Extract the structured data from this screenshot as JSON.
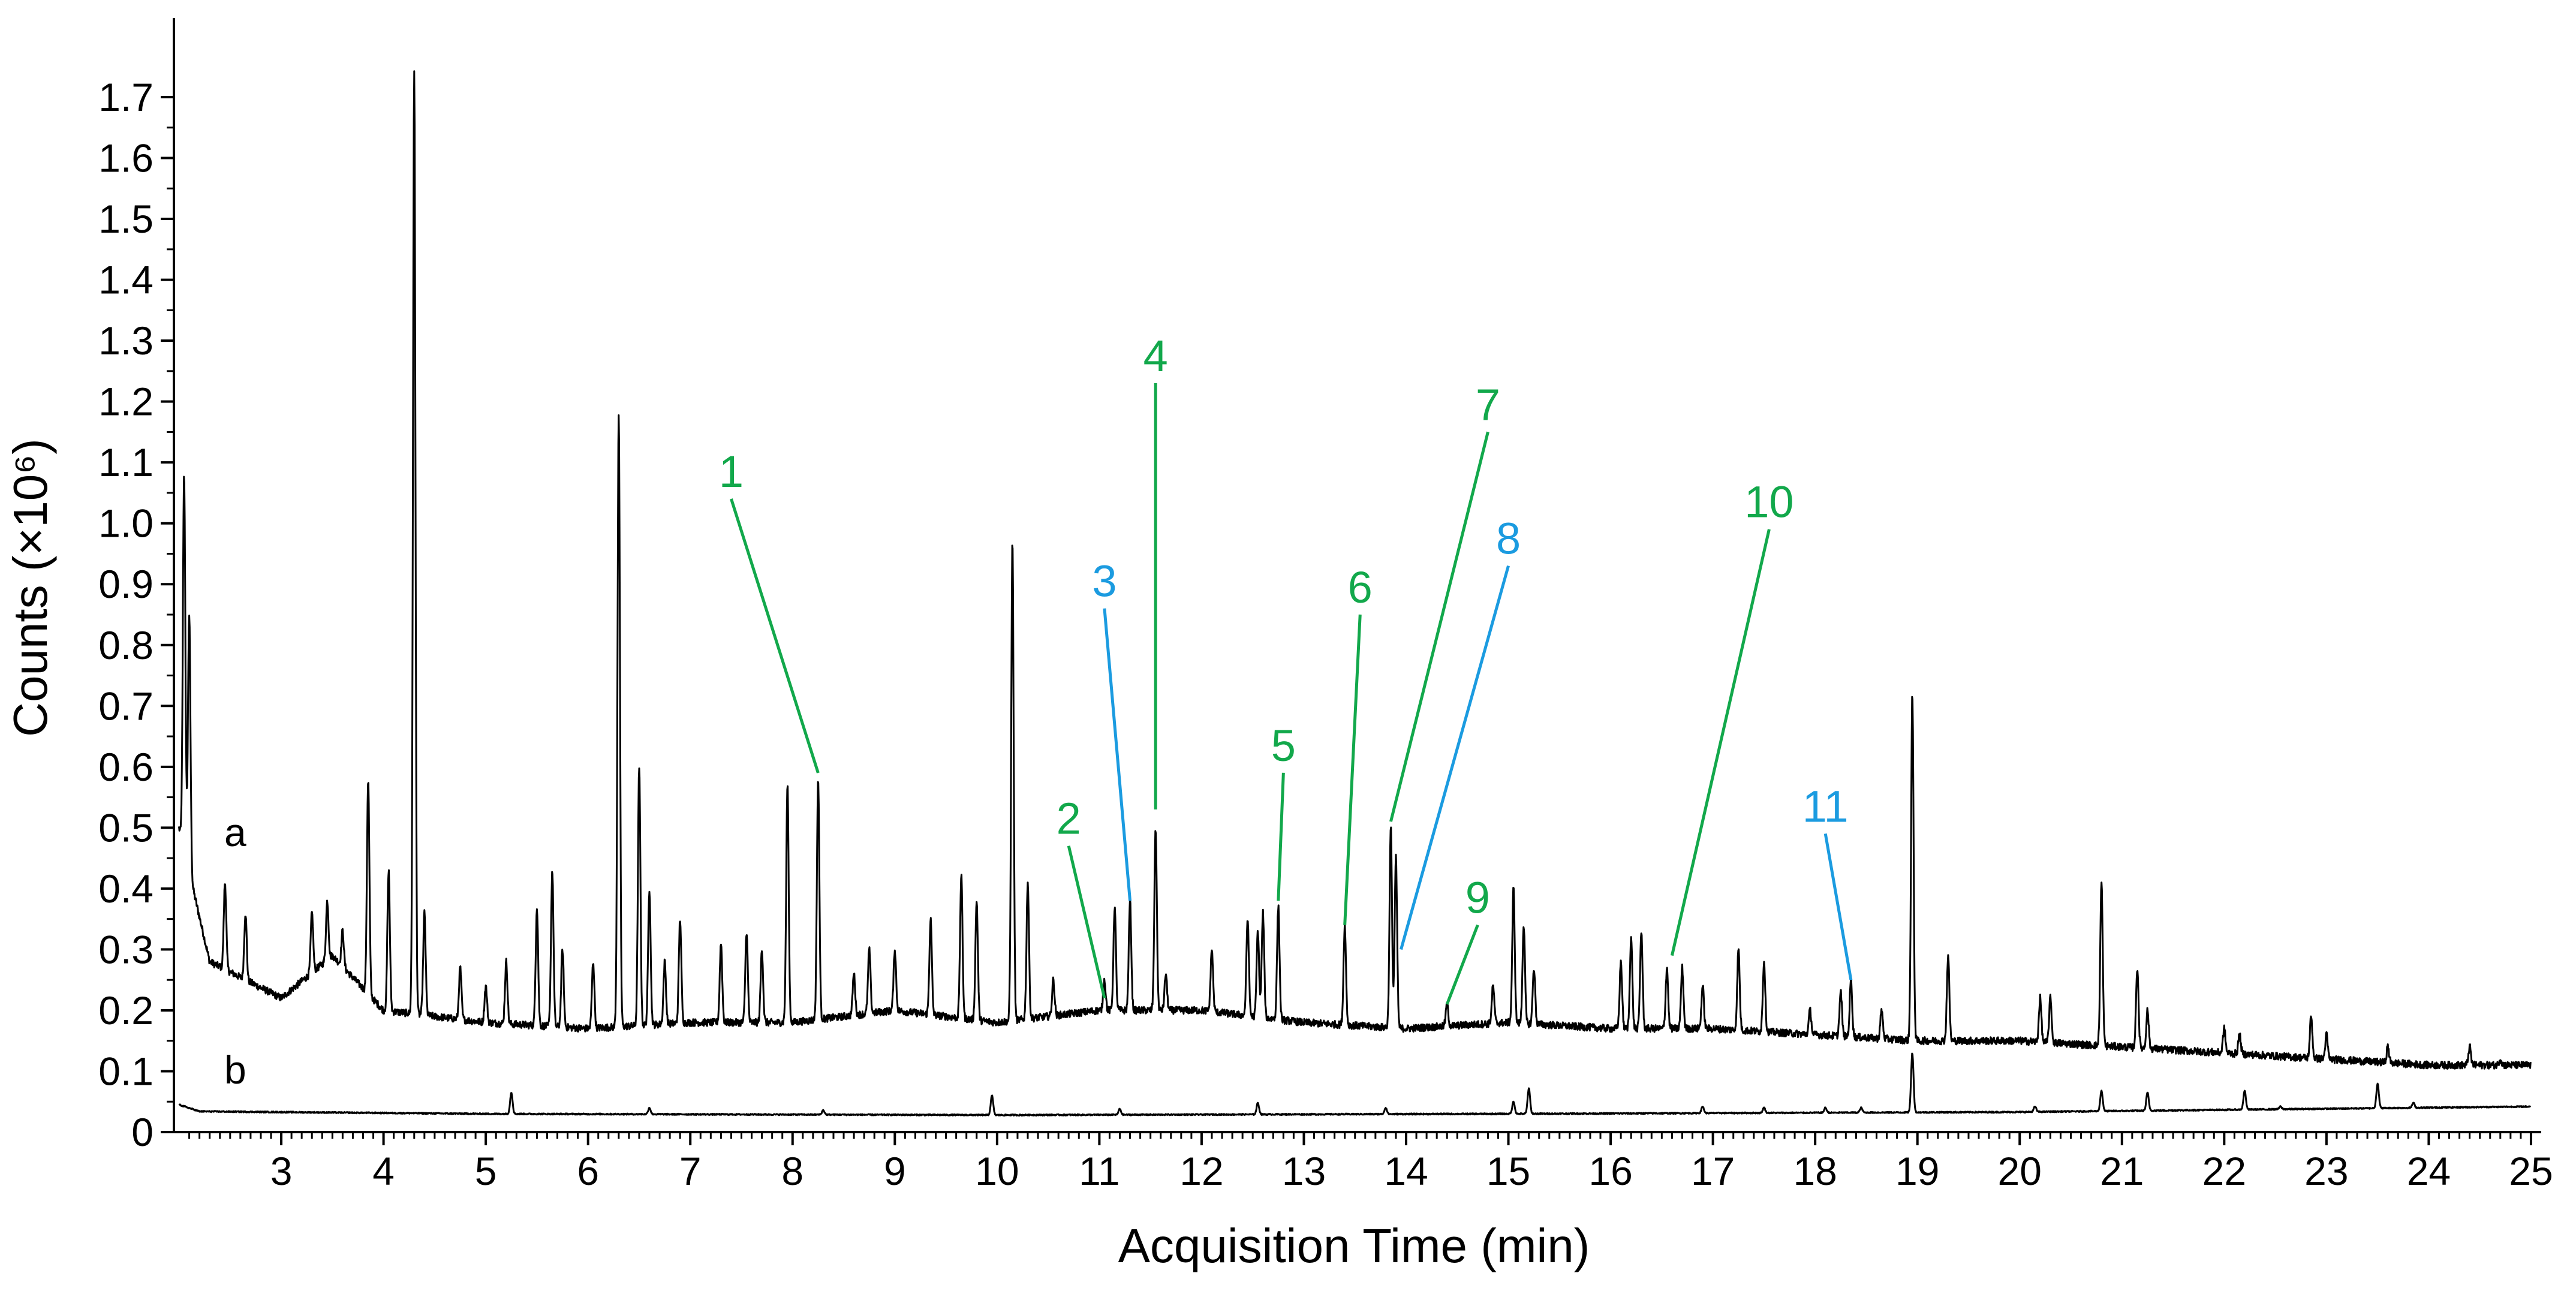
{
  "chart_data": {
    "type": "line",
    "xlabel": "Acquisition Time (min)",
    "ylabel": "Counts (×10⁶)",
    "xlim": [
      1.95,
      25.1
    ],
    "ylim": [
      0,
      1.83
    ],
    "x_ticks": [
      3,
      4,
      5,
      6,
      7,
      8,
      9,
      10,
      11,
      12,
      13,
      14,
      15,
      16,
      17,
      18,
      19,
      20,
      21,
      22,
      23,
      24,
      25
    ],
    "y_ticks": [
      0,
      0.1,
      0.2,
      0.3,
      0.4,
      0.5,
      0.6,
      0.7,
      0.8,
      0.9,
      1.0,
      1.1,
      1.2,
      1.3,
      1.4,
      1.5,
      1.6,
      1.7
    ],
    "y_tick_labels": [
      "0",
      "0.1",
      "0.2",
      "0.3",
      "0.4",
      "0.5",
      "0.6",
      "0.7",
      "0.8",
      "0.9",
      "1.0",
      "1.1",
      "1.2",
      "1.3",
      "1.4",
      "1.5",
      "1.6",
      "1.7"
    ],
    "grid": false,
    "series": [
      {
        "name": "a",
        "color": "#000000",
        "baseline": [
          [
            2.0,
            0.5
          ],
          [
            2.3,
            0.28
          ],
          [
            3.0,
            0.22
          ],
          [
            3.5,
            0.29
          ],
          [
            4.0,
            0.2
          ],
          [
            5.0,
            0.18
          ],
          [
            6.0,
            0.17
          ],
          [
            7.0,
            0.18
          ],
          [
            8.0,
            0.18
          ],
          [
            9.0,
            0.2
          ],
          [
            10.0,
            0.18
          ],
          [
            11.0,
            0.2
          ],
          [
            12.0,
            0.2
          ],
          [
            13.0,
            0.18
          ],
          [
            14.0,
            0.17
          ],
          [
            15.0,
            0.18
          ],
          [
            16.0,
            0.17
          ],
          [
            17.0,
            0.17
          ],
          [
            18.0,
            0.16
          ],
          [
            19.0,
            0.15
          ],
          [
            20.0,
            0.15
          ],
          [
            21.0,
            0.14
          ],
          [
            22.0,
            0.13
          ],
          [
            23.0,
            0.12
          ],
          [
            24.0,
            0.11
          ],
          [
            25.0,
            0.11
          ]
        ],
        "peaks": [
          [
            2.05,
            1.08
          ],
          [
            2.1,
            0.85
          ],
          [
            2.45,
            0.41
          ],
          [
            2.65,
            0.36
          ],
          [
            3.3,
            0.36
          ],
          [
            3.45,
            0.38
          ],
          [
            3.6,
            0.33
          ],
          [
            3.85,
            0.58
          ],
          [
            4.05,
            0.43
          ],
          [
            4.3,
            1.74
          ],
          [
            4.4,
            0.36
          ],
          [
            4.75,
            0.27
          ],
          [
            5.0,
            0.24
          ],
          [
            5.2,
            0.28
          ],
          [
            5.5,
            0.37
          ],
          [
            5.65,
            0.43
          ],
          [
            5.75,
            0.3
          ],
          [
            6.05,
            0.28
          ],
          [
            6.3,
            1.18
          ],
          [
            6.5,
            0.6
          ],
          [
            6.6,
            0.4
          ],
          [
            6.75,
            0.28
          ],
          [
            6.9,
            0.35
          ],
          [
            7.3,
            0.31
          ],
          [
            7.55,
            0.33
          ],
          [
            7.7,
            0.3
          ],
          [
            7.95,
            0.57
          ],
          [
            8.25,
            0.58
          ],
          [
            8.6,
            0.26
          ],
          [
            8.75,
            0.3
          ],
          [
            9.0,
            0.3
          ],
          [
            9.35,
            0.35
          ],
          [
            9.65,
            0.42
          ],
          [
            9.8,
            0.38
          ],
          [
            10.15,
            0.97
          ],
          [
            10.3,
            0.41
          ],
          [
            10.55,
            0.25
          ],
          [
            11.05,
            0.25
          ],
          [
            11.15,
            0.37
          ],
          [
            11.3,
            0.38
          ],
          [
            11.55,
            0.5
          ],
          [
            11.65,
            0.26
          ],
          [
            12.1,
            0.3
          ],
          [
            12.45,
            0.35
          ],
          [
            12.55,
            0.33
          ],
          [
            12.6,
            0.36
          ],
          [
            12.75,
            0.37
          ],
          [
            13.4,
            0.34
          ],
          [
            13.85,
            0.5
          ],
          [
            13.9,
            0.45
          ],
          [
            14.4,
            0.21
          ],
          [
            14.85,
            0.24
          ],
          [
            15.05,
            0.4
          ],
          [
            15.15,
            0.34
          ],
          [
            15.25,
            0.27
          ],
          [
            16.1,
            0.28
          ],
          [
            16.2,
            0.32
          ],
          [
            16.3,
            0.33
          ],
          [
            16.55,
            0.27
          ],
          [
            16.7,
            0.27
          ],
          [
            16.9,
            0.24
          ],
          [
            17.25,
            0.3
          ],
          [
            17.5,
            0.28
          ],
          [
            17.95,
            0.2
          ],
          [
            18.25,
            0.23
          ],
          [
            18.35,
            0.25
          ],
          [
            18.65,
            0.2
          ],
          [
            18.95,
            0.72
          ],
          [
            19.3,
            0.29
          ],
          [
            20.2,
            0.22
          ],
          [
            20.3,
            0.22
          ],
          [
            20.8,
            0.41
          ],
          [
            21.15,
            0.27
          ],
          [
            21.25,
            0.2
          ],
          [
            22.0,
            0.17
          ],
          [
            22.15,
            0.16
          ],
          [
            22.85,
            0.19
          ],
          [
            23.0,
            0.16
          ],
          [
            23.6,
            0.14
          ],
          [
            24.4,
            0.14
          ],
          [
            24.7,
            0.12
          ]
        ]
      },
      {
        "name": "b",
        "color": "#000000",
        "baseline": [
          [
            2.0,
            0.045
          ],
          [
            2.2,
            0.034
          ],
          [
            5.0,
            0.03
          ],
          [
            10.0,
            0.028
          ],
          [
            15.0,
            0.03
          ],
          [
            20.0,
            0.033
          ],
          [
            25.0,
            0.042
          ]
        ],
        "peaks": [
          [
            5.25,
            0.065
          ],
          [
            6.6,
            0.04
          ],
          [
            8.3,
            0.036
          ],
          [
            9.95,
            0.06
          ],
          [
            11.2,
            0.038
          ],
          [
            12.55,
            0.048
          ],
          [
            13.8,
            0.04
          ],
          [
            15.05,
            0.05
          ],
          [
            15.2,
            0.072
          ],
          [
            16.9,
            0.042
          ],
          [
            17.5,
            0.04
          ],
          [
            18.1,
            0.04
          ],
          [
            18.45,
            0.04
          ],
          [
            18.95,
            0.13
          ],
          [
            20.15,
            0.042
          ],
          [
            20.8,
            0.068
          ],
          [
            21.25,
            0.065
          ],
          [
            22.2,
            0.068
          ],
          [
            22.55,
            0.042
          ],
          [
            23.5,
            0.08
          ],
          [
            23.85,
            0.048
          ]
        ]
      }
    ],
    "trace_labels": [
      {
        "text": "a",
        "x": 2.55,
        "y": 0.47
      },
      {
        "text": "b",
        "x": 2.55,
        "y": 0.08
      }
    ],
    "annotations": [
      {
        "text": "1",
        "color": "#12a84b",
        "label_x": 7.4,
        "label_y": 1.05,
        "x": 8.25,
        "y": 0.59
      },
      {
        "text": "2",
        "color": "#12a84b",
        "label_x": 10.7,
        "label_y": 0.48,
        "x": 11.05,
        "y": 0.22
      },
      {
        "text": "3",
        "color": "#1b9be0",
        "label_x": 11.05,
        "label_y": 0.87,
        "x": 11.3,
        "y": 0.38
      },
      {
        "text": "4",
        "color": "#12a84b",
        "label_x": 11.55,
        "label_y": 1.24,
        "x": 11.55,
        "y": 0.53
      },
      {
        "text": "5",
        "color": "#12a84b",
        "label_x": 12.8,
        "label_y": 0.6,
        "x": 12.75,
        "y": 0.38
      },
      {
        "text": "6",
        "color": "#12a84b",
        "label_x": 13.55,
        "label_y": 0.86,
        "x": 13.4,
        "y": 0.34
      },
      {
        "text": "7",
        "color": "#12a84b",
        "label_x": 14.8,
        "label_y": 1.16,
        "x": 13.85,
        "y": 0.51
      },
      {
        "text": "8",
        "color": "#1b9be0",
        "label_x": 15.0,
        "label_y": 0.94,
        "x": 13.95,
        "y": 0.3
      },
      {
        "text": "9",
        "color": "#12a84b",
        "label_x": 14.7,
        "label_y": 0.35,
        "x": 14.4,
        "y": 0.21
      },
      {
        "text": "10",
        "color": "#12a84b",
        "label_x": 17.55,
        "label_y": 1.0,
        "x": 16.6,
        "y": 0.29
      },
      {
        "text": "11",
        "color": "#1b9be0",
        "label_x": 18.1,
        "label_y": 0.5,
        "x": 18.35,
        "y": 0.25
      }
    ]
  }
}
